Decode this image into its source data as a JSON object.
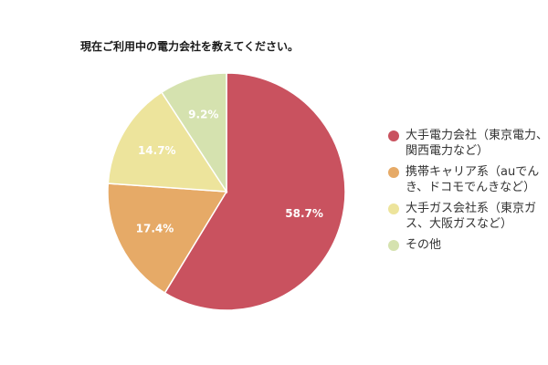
{
  "chart_data": {
    "type": "pie",
    "title": "現在ご利用中の電力会社を教えてください。",
    "start_angle_deg": 0,
    "direction": "clockwise",
    "slices": [
      {
        "label": "大手電力会社（東京電力、\n関西電力など）",
        "value": 58.7,
        "value_label": "58.7%",
        "color": "#c9525f"
      },
      {
        "label": "携帯キャリア系（auでん\nき、ドコモでんきなど）",
        "value": 17.4,
        "value_label": "17.4%",
        "color": "#e6aa67"
      },
      {
        "label": "大手ガス会社系（東京ガ\nス、大阪ガスなど）",
        "value": 14.7,
        "value_label": "14.7%",
        "color": "#ede49c"
      },
      {
        "label": "その他",
        "value": 9.2,
        "value_label": "9.2%",
        "color": "#d5e2af"
      }
    ],
    "data_label_color": "#ffffff",
    "legend_position": "right"
  }
}
